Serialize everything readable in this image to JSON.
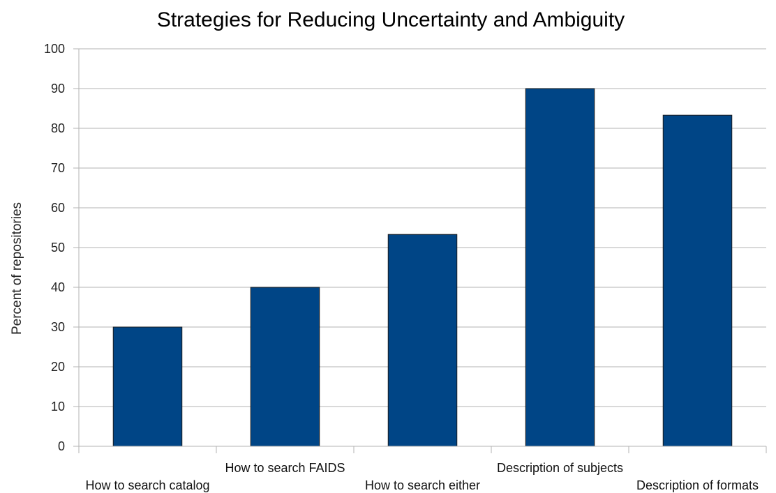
{
  "chart_data": {
    "type": "bar",
    "title": "Strategies for Reducing Uncertainty and Ambiguity",
    "ylabel": "Percent of repositories",
    "categories": [
      "How to search catalog",
      "How to search FAIDS",
      "How to search either",
      "Description of subjects",
      "Description of formats"
    ],
    "values": [
      30,
      40,
      53.3,
      90,
      83.3
    ],
    "ylim": [
      0,
      100
    ],
    "yticks": [
      "0",
      "10",
      "20",
      "30",
      "40",
      "50",
      "60",
      "70",
      "80",
      "90",
      "100"
    ],
    "bar_color": "#004586",
    "grid": true,
    "legend": "none"
  }
}
